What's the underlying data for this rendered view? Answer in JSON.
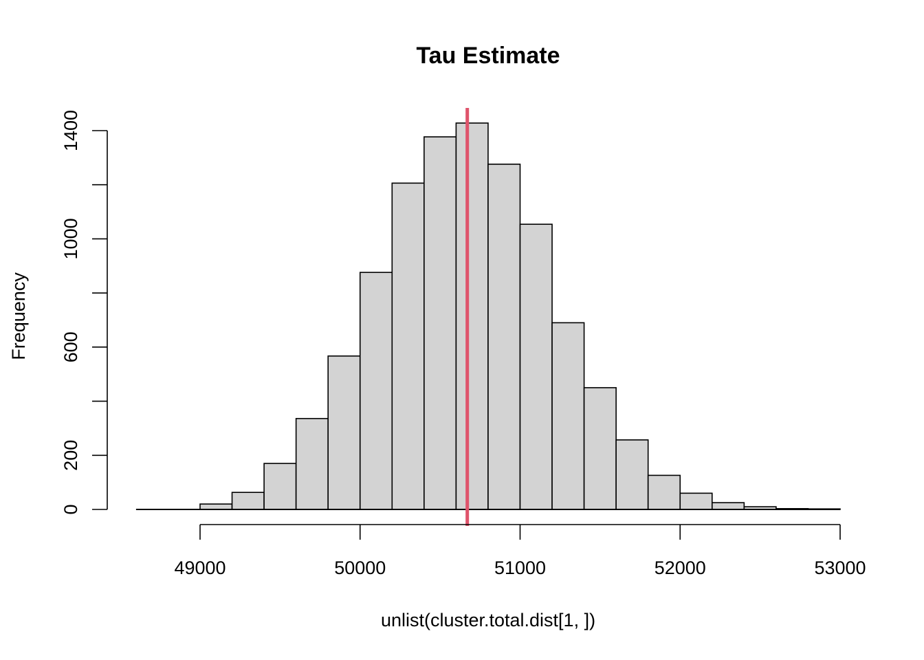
{
  "chart_data": {
    "type": "bar",
    "title": "Tau Estimate",
    "xlabel": "unlist(cluster.total.dist[1, ])",
    "ylabel": "Frequency",
    "bin_width": 200,
    "bins": [
      {
        "start": 48600,
        "end": 48800,
        "count": 0
      },
      {
        "start": 48800,
        "end": 49000,
        "count": 0
      },
      {
        "start": 49000,
        "end": 49200,
        "count": 20
      },
      {
        "start": 49200,
        "end": 49400,
        "count": 63
      },
      {
        "start": 49400,
        "end": 49600,
        "count": 170
      },
      {
        "start": 49600,
        "end": 49800,
        "count": 336
      },
      {
        "start": 49800,
        "end": 50000,
        "count": 567
      },
      {
        "start": 50000,
        "end": 50200,
        "count": 876
      },
      {
        "start": 50200,
        "end": 50400,
        "count": 1206
      },
      {
        "start": 50400,
        "end": 50600,
        "count": 1377
      },
      {
        "start": 50600,
        "end": 50800,
        "count": 1428
      },
      {
        "start": 50800,
        "end": 51000,
        "count": 1276
      },
      {
        "start": 51000,
        "end": 51200,
        "count": 1054
      },
      {
        "start": 51200,
        "end": 51400,
        "count": 690
      },
      {
        "start": 51400,
        "end": 51600,
        "count": 450
      },
      {
        "start": 51600,
        "end": 51800,
        "count": 257
      },
      {
        "start": 51800,
        "end": 52000,
        "count": 126
      },
      {
        "start": 52000,
        "end": 52200,
        "count": 60
      },
      {
        "start": 52200,
        "end": 52400,
        "count": 25
      },
      {
        "start": 52400,
        "end": 52600,
        "count": 10
      },
      {
        "start": 52600,
        "end": 52800,
        "count": 3
      },
      {
        "start": 52800,
        "end": 53000,
        "count": 2
      }
    ],
    "reference_line": {
      "x": 50670,
      "color": "#df536b"
    },
    "bar_color": "#d3d3d3",
    "xlim": [
      48600,
      53000
    ],
    "ylim": [
      0,
      1400
    ],
    "x_ticks": [
      49000,
      50000,
      51000,
      52000,
      53000
    ],
    "x_tick_labels": [
      "49000",
      "50000",
      "51000",
      "52000",
      "53000"
    ],
    "y_ticks": [
      0,
      200,
      400,
      600,
      800,
      1000,
      1200,
      1400
    ],
    "y_tick_labels": [
      "0",
      "200",
      "",
      "600",
      "",
      "1000",
      "",
      "1400"
    ],
    "grid": false,
    "legend": "none"
  }
}
